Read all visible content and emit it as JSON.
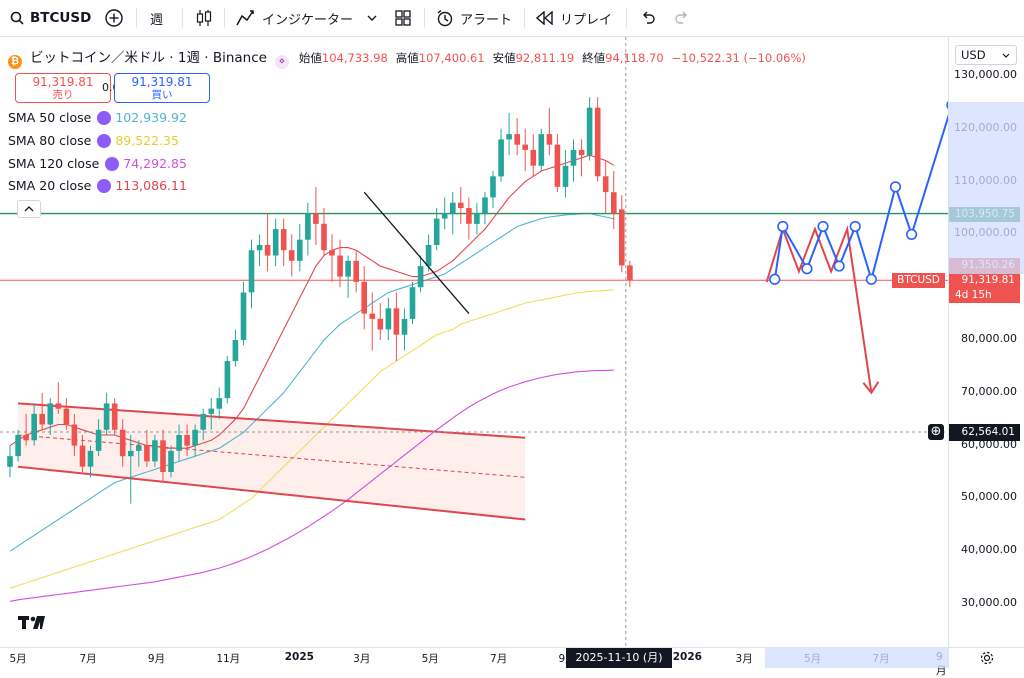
{
  "toolbar": {
    "symbol": "BTCUSD",
    "interval": "週",
    "indicators_label": "インジケーター",
    "alert_label": "アラート",
    "replay_label": "リプレイ"
  },
  "legend": {
    "title": "ビットコイン／米ドル · 1週 · Binance",
    "open_label": "始値",
    "open_value": "104,733.98",
    "high_label": "高値",
    "high_value": "107,400.61",
    "low_label": "安値",
    "low_value": "92,811.19",
    "close_label": "終値",
    "close_value": "94,118.70",
    "change": "−10,522.31 (−10.06%)",
    "sell_price": "91,319.81",
    "sell_label": "売り",
    "spread": "0.00",
    "buy_price": "91,319.81",
    "buy_label": "買い",
    "sma": [
      {
        "name": "SMA 50 close",
        "value": "102,939.92",
        "color": "#4fb4d4"
      },
      {
        "name": "SMA 80 close",
        "value": "89,522.35",
        "color": "#f2dd5a"
      },
      {
        "name": "SMA 120 close",
        "value": "74,292.85",
        "color": "#d64ce0"
      },
      {
        "name": "SMA 20 close",
        "value": "113,086.11",
        "color": "#e0464e"
      }
    ]
  },
  "price_axis": {
    "currency": "USD",
    "ticks": [
      "130,000.00",
      "120,000.00",
      "110,000.00",
      "100,000.00",
      "80,000.00",
      "70,000.00",
      "60,000.00",
      "50,000.00",
      "40,000.00",
      "30,000.00"
    ],
    "labels": {
      "green_level": "103,950.75",
      "symbol_tag": "BTCUSD",
      "price_a": "91,350.26",
      "price_b": "91,319.81",
      "countdown": "4d 15h",
      "crosshair_price": "62,564.01"
    }
  },
  "time_axis": {
    "ticks": [
      "5月",
      "7月",
      "9月",
      "11月",
      "2025",
      "3月",
      "5月",
      "7月",
      "9月",
      "2026",
      "3月",
      "5月",
      "7月",
      "9月"
    ],
    "crosshair_date": "2025-11-10 (月)"
  },
  "colors": {
    "up": "#26a69a",
    "down": "#ef5350",
    "green_line": "#22915a",
    "red_line": "#ef5350",
    "blue_drawing": "#2962ff",
    "channel": "#e0464e"
  },
  "chart_data": {
    "type": "candlestick",
    "ylim": [
      25000,
      135000
    ],
    "green_level": 103950.75,
    "current_price": 91319.81,
    "crosshair_price": 62564.01,
    "candles": [
      [
        56000,
        60000,
        54000,
        58000
      ],
      [
        58000,
        63000,
        57000,
        62000
      ],
      [
        62000,
        66000,
        60000,
        61000
      ],
      [
        61000,
        68000,
        60000,
        66000
      ],
      [
        66000,
        70000,
        63000,
        64000
      ],
      [
        64000,
        69000,
        62000,
        68000
      ],
      [
        68000,
        72000,
        66000,
        67000
      ],
      [
        67000,
        69000,
        63000,
        64000
      ],
      [
        64000,
        66000,
        58000,
        60000
      ],
      [
        60000,
        62000,
        55000,
        56000
      ],
      [
        56000,
        60000,
        54000,
        59000
      ],
      [
        59000,
        65000,
        58000,
        63000
      ],
      [
        63000,
        70000,
        62000,
        68000
      ],
      [
        68000,
        69000,
        62000,
        63000
      ],
      [
        63000,
        65000,
        56000,
        58000
      ],
      [
        58000,
        62000,
        49000,
        59000
      ],
      [
        59000,
        61000,
        56000,
        60000
      ],
      [
        60000,
        63000,
        56000,
        57000
      ],
      [
        57000,
        62000,
        56000,
        61000
      ],
      [
        61000,
        63000,
        53000,
        55000
      ],
      [
        55000,
        60000,
        54000,
        59000
      ],
      [
        59000,
        64000,
        57000,
        62000
      ],
      [
        62000,
        64000,
        58000,
        60000
      ],
      [
        60000,
        64000,
        58000,
        63000
      ],
      [
        63000,
        67000,
        61000,
        66000
      ],
      [
        66000,
        69000,
        63000,
        67000
      ],
      [
        67000,
        71000,
        65000,
        69000
      ],
      [
        69000,
        77000,
        68000,
        76000
      ],
      [
        76000,
        82000,
        75000,
        80000
      ],
      [
        80000,
        91000,
        79000,
        89000
      ],
      [
        89000,
        99000,
        86000,
        97000
      ],
      [
        97000,
        100000,
        94000,
        98000
      ],
      [
        98000,
        104000,
        93000,
        96000
      ],
      [
        96000,
        103000,
        94000,
        101000
      ],
      [
        101000,
        103000,
        94000,
        97000
      ],
      [
        97000,
        100000,
        92000,
        95000
      ],
      [
        95000,
        102000,
        93000,
        99000
      ],
      [
        99000,
        106000,
        96000,
        104000
      ],
      [
        104000,
        109000,
        98000,
        102000
      ],
      [
        102000,
        105000,
        96000,
        97000
      ],
      [
        97000,
        100000,
        91000,
        96000
      ],
      [
        96000,
        99000,
        90000,
        92000
      ],
      [
        92000,
        96000,
        88000,
        95000
      ],
      [
        95000,
        97000,
        89000,
        91000
      ],
      [
        91000,
        94000,
        82000,
        85000
      ],
      [
        85000,
        89000,
        78000,
        84000
      ],
      [
        84000,
        87000,
        80000,
        82000
      ],
      [
        82000,
        88000,
        80000,
        86000
      ],
      [
        86000,
        89000,
        76000,
        81000
      ],
      [
        81000,
        86000,
        78000,
        84000
      ],
      [
        84000,
        91000,
        83000,
        90000
      ],
      [
        90000,
        96000,
        89000,
        94000
      ],
      [
        94000,
        100000,
        93000,
        98000
      ],
      [
        98000,
        105000,
        97000,
        103000
      ],
      [
        103000,
        107000,
        101000,
        104000
      ],
      [
        104000,
        108000,
        100000,
        106000
      ],
      [
        106000,
        109000,
        102000,
        105000
      ],
      [
        105000,
        107000,
        99000,
        102000
      ],
      [
        102000,
        106000,
        100000,
        104000
      ],
      [
        104000,
        108000,
        102000,
        107000
      ],
      [
        107000,
        112000,
        105000,
        111000
      ],
      [
        111000,
        120000,
        110000,
        118000
      ],
      [
        118000,
        123000,
        115000,
        119000
      ],
      [
        119000,
        122000,
        115000,
        117000
      ],
      [
        117000,
        120000,
        112000,
        116000
      ],
      [
        116000,
        119000,
        111000,
        113000
      ],
      [
        113000,
        120000,
        112000,
        119000
      ],
      [
        119000,
        124000,
        115000,
        117000
      ],
      [
        117000,
        119000,
        108000,
        109000
      ],
      [
        109000,
        116000,
        107000,
        113000
      ],
      [
        113000,
        118000,
        110000,
        116000
      ],
      [
        116000,
        118000,
        111000,
        115000
      ],
      [
        115000,
        126000,
        114000,
        124000
      ],
      [
        124000,
        126000,
        110000,
        111000
      ],
      [
        111000,
        114000,
        104000,
        108000
      ],
      [
        108000,
        112000,
        101000,
        104000
      ],
      [
        104733.98,
        107400.61,
        92811.19,
        94118.7
      ],
      [
        94118.7,
        95000,
        90000,
        91319.81
      ]
    ],
    "sma20": [
      60000,
      61000,
      62000,
      62500,
      63000,
      63500,
      64000,
      64000,
      63500,
      63000,
      62500,
      62000,
      62000,
      62000,
      61500,
      61000,
      60500,
      60000,
      60000,
      59500,
      59500,
      59500,
      59500,
      60000,
      60500,
      61000,
      62000,
      63500,
      65000,
      67000,
      70000,
      73000,
      76000,
      79000,
      82000,
      85000,
      88000,
      91000,
      94000,
      96000,
      97000,
      97500,
      97500,
      97000,
      96000,
      95000,
      94000,
      93500,
      93000,
      92500,
      92000,
      92000,
      92500,
      93000,
      94000,
      95000,
      96500,
      98000,
      99500,
      101000,
      103000,
      105000,
      107000,
      108500,
      110000,
      111000,
      112000,
      112500,
      113000,
      113500,
      114000,
      114500,
      115000,
      114500,
      114000,
      113086.11
    ],
    "sma50": [
      40000,
      41000,
      42000,
      43000,
      44000,
      45000,
      46000,
      47000,
      48000,
      49000,
      50000,
      51000,
      52000,
      53000,
      53500,
      54000,
      54500,
      55000,
      55500,
      56000,
      56500,
      57000,
      57500,
      58000,
      58500,
      59000,
      59500,
      60500,
      61500,
      62500,
      64000,
      65500,
      67000,
      68500,
      70000,
      72000,
      74000,
      76000,
      78000,
      80000,
      81500,
      83000,
      84000,
      85000,
      86000,
      87000,
      88000,
      89000,
      89500,
      90000,
      90500,
      91000,
      91500,
      92000,
      92500,
      93500,
      94500,
      95500,
      96500,
      97500,
      98500,
      99500,
      100500,
      101500,
      102000,
      102500,
      103000,
      103300,
      103500,
      103700,
      103800,
      103900,
      104000,
      103600,
      103300,
      102939.92
    ],
    "sma80": [
      33000,
      33500,
      34000,
      34500,
      35000,
      35500,
      36000,
      36500,
      37000,
      37500,
      38000,
      38500,
      39000,
      39500,
      40000,
      40500,
      41000,
      41500,
      42000,
      42500,
      43000,
      43500,
      44000,
      44500,
      45000,
      45500,
      46000,
      47000,
      48000,
      49000,
      50000,
      51500,
      53000,
      54500,
      56000,
      57500,
      59000,
      60500,
      62000,
      63500,
      65000,
      66500,
      68000,
      69500,
      71000,
      72500,
      74000,
      75000,
      76000,
      77000,
      78000,
      79000,
      80000,
      81000,
      81500,
      82000,
      83000,
      83500,
      84000,
      84500,
      85000,
      85500,
      86000,
      86500,
      87000,
      87300,
      87600,
      87900,
      88200,
      88500,
      88800,
      89000,
      89200,
      89300,
      89400,
      89522.35
    ],
    "sma120": [
      30500,
      30800,
      31000,
      31200,
      31400,
      31600,
      31800,
      32000,
      32200,
      32400,
      32600,
      32800,
      33000,
      33200,
      33400,
      33600,
      33800,
      34000,
      34200,
      34500,
      34800,
      35100,
      35400,
      35700,
      36000,
      36400,
      36800,
      37300,
      37800,
      38400,
      39000,
      39700,
      40400,
      41200,
      42000,
      42800,
      43700,
      44600,
      45600,
      46600,
      47600,
      48700,
      49800,
      51000,
      52200,
      53400,
      54600,
      55800,
      57000,
      58200,
      59400,
      60600,
      61800,
      63000,
      64100,
      65200,
      66300,
      67300,
      68200,
      69000,
      69800,
      70500,
      71100,
      71600,
      72100,
      72500,
      72900,
      73200,
      73500,
      73700,
      73900,
      74050,
      74150,
      74200,
      74250,
      74292.85
    ],
    "channel_upper": [
      [
        1,
        68000
      ],
      [
        64,
        61500
      ]
    ],
    "channel_mid": [
      [
        1,
        62000
      ],
      [
        64,
        54000
      ]
    ],
    "channel_lower": [
      [
        1,
        56000
      ],
      [
        64,
        46000
      ]
    ],
    "trendline": [
      [
        44,
        108000
      ],
      [
        57,
        85000
      ]
    ],
    "red_projection": [
      [
        94,
        91000
      ],
      [
        96,
        101000
      ],
      [
        98,
        93000
      ],
      [
        100,
        101000
      ],
      [
        102,
        93000
      ],
      [
        104,
        101000
      ],
      [
        107,
        70000
      ]
    ],
    "blue_projection": [
      [
        95,
        91500
      ],
      [
        96,
        101500
      ],
      [
        99,
        93500
      ],
      [
        101,
        101500
      ],
      [
        103,
        94000
      ],
      [
        105,
        101500
      ],
      [
        107,
        91500
      ],
      [
        110,
        109000
      ],
      [
        112,
        100000
      ],
      [
        117,
        124500
      ]
    ]
  }
}
